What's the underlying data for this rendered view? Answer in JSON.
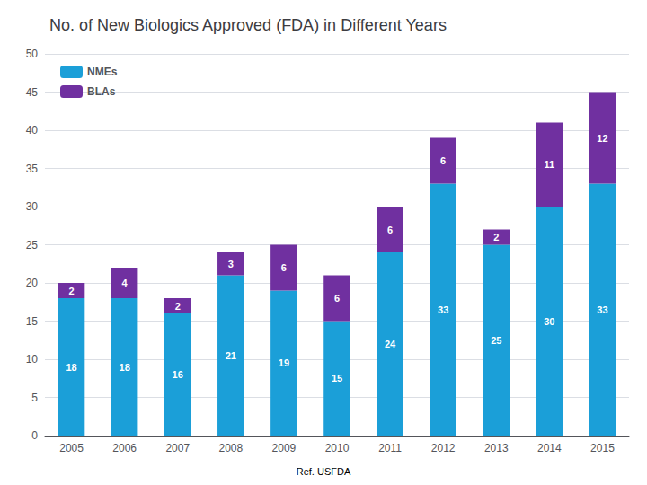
{
  "chart_data": {
    "type": "bar",
    "title": "No. of New Biologics Approved (FDA) in Different Years",
    "categories": [
      "2005",
      "2006",
      "2007",
      "2008",
      "2009",
      "2010",
      "2011",
      "2012",
      "2013",
      "2014",
      "2015"
    ],
    "series": [
      {
        "name": "NMEs",
        "color": "#1B9FD8",
        "values": [
          18,
          18,
          16,
          21,
          19,
          15,
          24,
          33,
          25,
          30,
          33
        ]
      },
      {
        "name": "BLAs",
        "color": "#7030A0",
        "values": [
          2,
          4,
          2,
          3,
          6,
          6,
          6,
          6,
          2,
          11,
          12
        ]
      }
    ],
    "stacked": true,
    "data_labels": true,
    "ylim": [
      0,
      50
    ],
    "yticks": [
      0,
      5,
      10,
      15,
      20,
      25,
      30,
      35,
      40,
      45,
      50
    ],
    "grid": true,
    "legend": "upper left",
    "annotations": [
      "Ref. USFDA"
    ]
  }
}
